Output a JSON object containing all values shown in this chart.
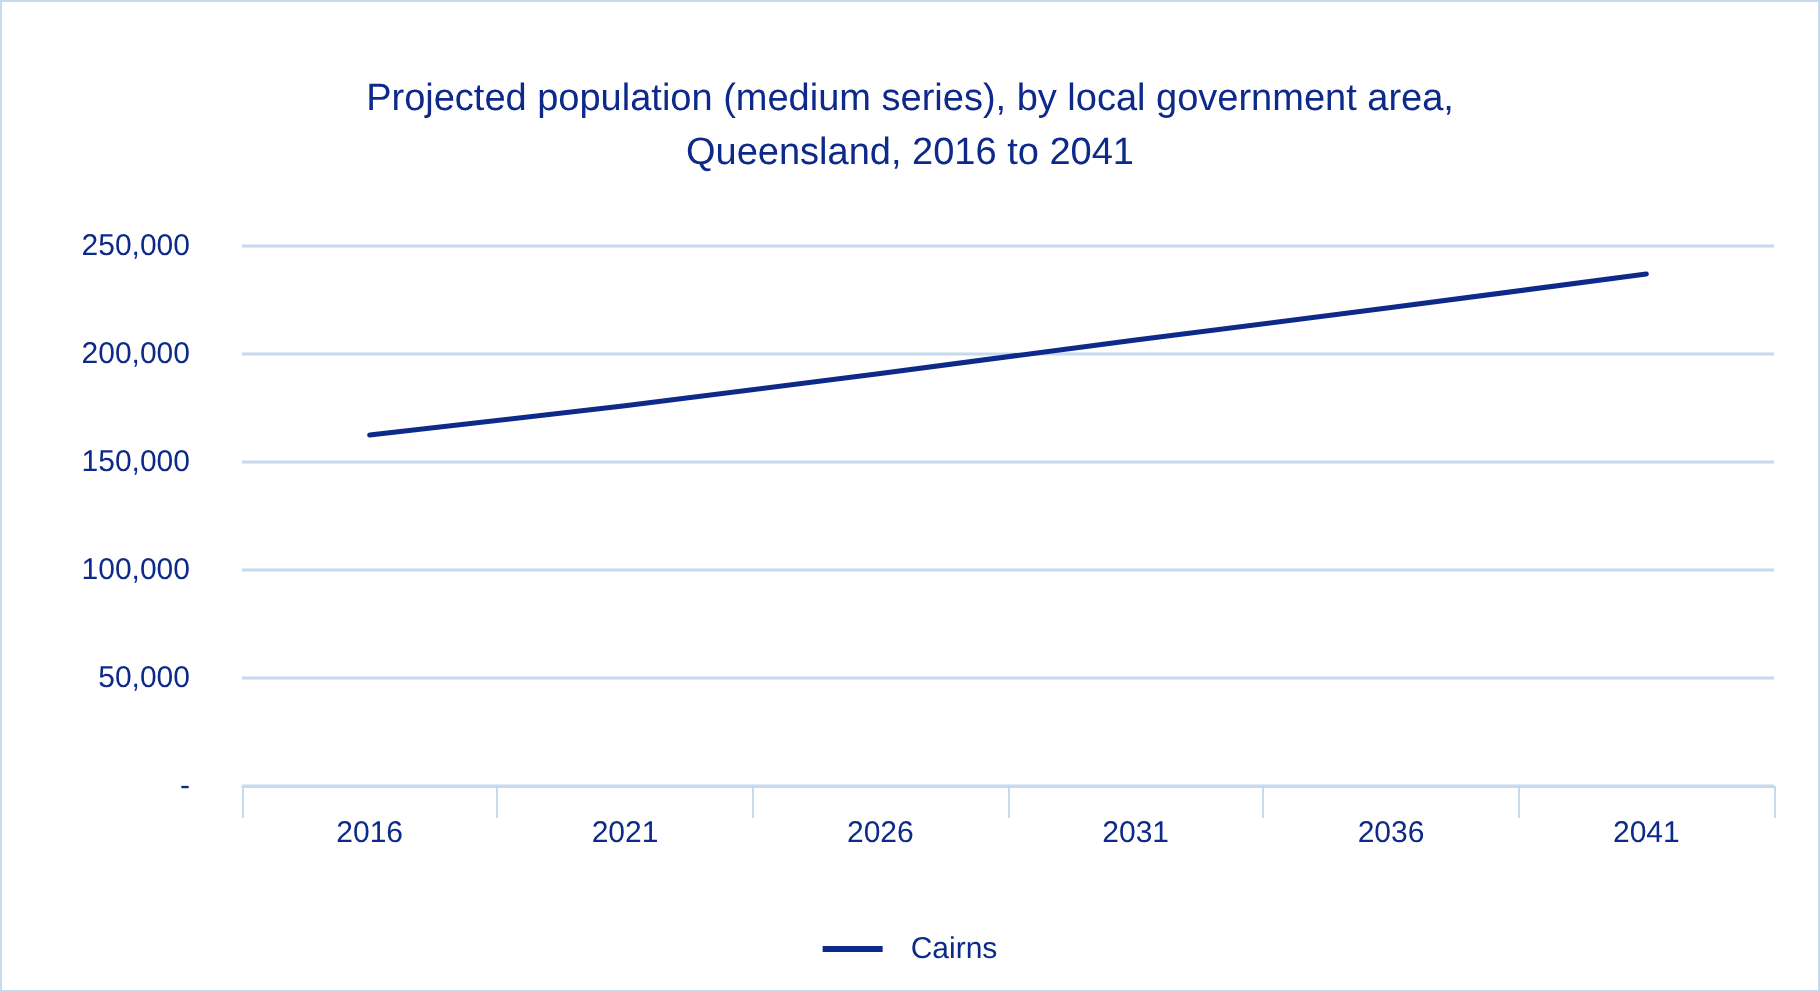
{
  "chart_data": {
    "type": "line",
    "title": "Projected population (medium series), by local government area,\nQueensland, 2016 to 2041",
    "categories": [
      "2016",
      "2021",
      "2026",
      "2031",
      "2036",
      "2041"
    ],
    "series": [
      {
        "name": "Cairns",
        "color": "#0d2a8a",
        "values": [
          162500,
          176000,
          191000,
          206500,
          221500,
          237000
        ]
      }
    ],
    "ylim": [
      0,
      250000
    ],
    "yticks": [
      {
        "value": 0,
        "label": "-"
      },
      {
        "value": 50000,
        "label": "50,000"
      },
      {
        "value": 100000,
        "label": "100,000"
      },
      {
        "value": 150000,
        "label": "150,000"
      },
      {
        "value": 200000,
        "label": "200,000"
      },
      {
        "value": 250000,
        "label": "250,000"
      }
    ],
    "grid": "y",
    "legend": "bottom",
    "marker": "none",
    "line_style": "solid"
  }
}
